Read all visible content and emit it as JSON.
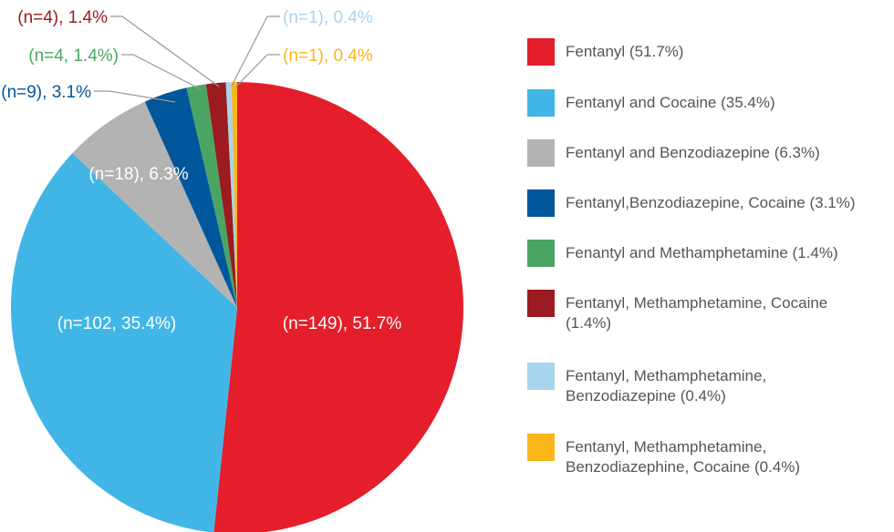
{
  "chart_data": {
    "type": "pie",
    "categories": [
      "Fentanyl (51.7%)",
      "Fentanyl and Cocaine (35.4%)",
      "Fentanyl and Benzodiazepine (6.3%)",
      "Fentanyl,Benzodiazepine, Cocaine (3.1%)",
      "Fenantyl and Methamphetamine (1.4%)",
      "Fentanyl, Methamphetamine, Cocaine (1.4%)",
      "Fentanyl, Methamphetamine, Benzodiazepine (0.4%)",
      "Fentanyl, Methamphetamine, Benzodiazephine, Cocaine (0.4%)"
    ],
    "values": [
      51.7,
      35.4,
      6.3,
      3.1,
      1.4,
      1.4,
      0.4,
      0.4
    ],
    "value_labels": [
      "(n=149), 51.7%",
      "(n=102, 35.4%)",
      "(n=18), 6.3%",
      "(n=9), 3.1%",
      "(n=4, 1.4%)",
      "(n=4), 1.4%",
      "(n=1), 0.4%",
      "(n=1), 0.4%"
    ],
    "colors": [
      "#e41e2b",
      "#41b6e6",
      "#b3b3b3",
      "#00579c",
      "#4aa564",
      "#9b1b20",
      "#a8d4ed",
      "#fbb61a"
    ]
  }
}
